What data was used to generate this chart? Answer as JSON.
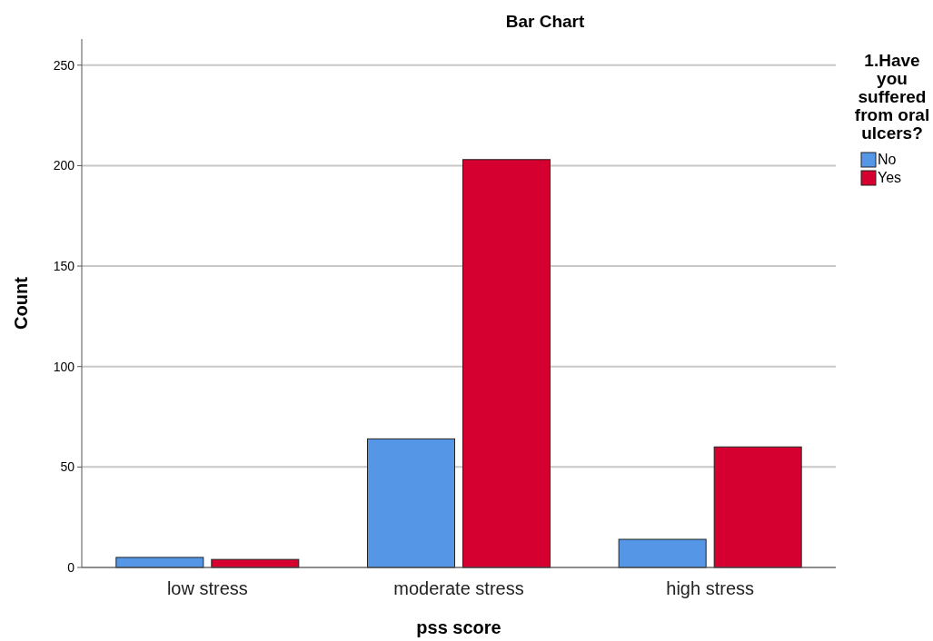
{
  "chart_data": {
    "type": "bar",
    "title": "Bar Chart",
    "xlabel": "pss score",
    "ylabel": "Count",
    "legend_title": "1.Have you suffered from oral ulcers?",
    "categories": [
      "low stress",
      "moderate stress",
      "high stress"
    ],
    "series": [
      {
        "name": "No",
        "color": "#5596e6",
        "values": [
          5,
          64,
          14
        ]
      },
      {
        "name": "Yes",
        "color": "#d5002f",
        "values": [
          4,
          203,
          60
        ]
      }
    ],
    "ylim": [
      0,
      263
    ],
    "yticks": [
      0,
      50,
      100,
      150,
      200,
      250
    ],
    "grid": "y",
    "legend": "right"
  }
}
